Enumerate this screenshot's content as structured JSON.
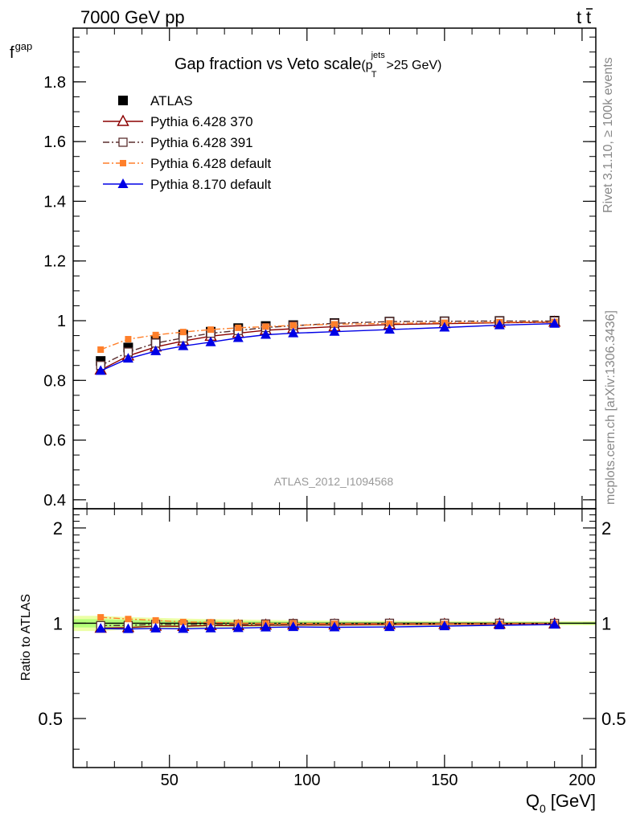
{
  "header": {
    "left": "7000 GeV pp",
    "right": "t",
    "right_bar": "t"
  },
  "side_text": {
    "rivet": "Rivet 3.1.10, ≥ 100k events",
    "mcplots": "mcplots.cern.ch [arXiv:1306.3436]"
  },
  "colors": {
    "atlas": "#000000",
    "p370": "#8b0000",
    "p391": "#5a2e2e",
    "p6def": "#ff7f2a",
    "p8def": "#0000e6",
    "band_outer": "#ecffa6",
    "band_inner": "#b5ff7a"
  },
  "chart_data": [
    {
      "type": "line",
      "title": "Gap fraction vs Veto scale",
      "title_suffix": {
        "open": "(p",
        "sub": "T",
        "sup": "jets",
        "close": ">25 GeV)"
      },
      "ylabel": "f",
      "ylabel_sub": "gap",
      "xlim": [
        15,
        205
      ],
      "ylim": [
        0.37,
        1.98
      ],
      "yticks": [
        "0.4",
        "0.6",
        "0.8",
        "1",
        "1.2",
        "1.4",
        "1.6",
        "1.8"
      ],
      "grid": false,
      "legend": "top-left",
      "watermark": "ATLAS_2012_I1094568",
      "x": [
        25,
        35,
        45,
        55,
        65,
        75,
        85,
        95,
        110,
        130,
        150,
        170,
        190
      ],
      "series": [
        {
          "name": "ATLAS",
          "key": "atlas",
          "style": "square-filled",
          "values": [
            0.865,
            0.91,
            0.932,
            0.953,
            0.963,
            0.975,
            0.982,
            0.985,
            0.992,
            0.997,
            0.998,
            0.999,
            1.0
          ]
        },
        {
          "name": "Pythia 6.428 370",
          "key": "p370",
          "style": "triangle-open-solid",
          "values": [
            0.835,
            0.882,
            0.912,
            0.932,
            0.948,
            0.958,
            0.968,
            0.973,
            0.98,
            0.987,
            0.99,
            0.993,
            0.995
          ]
        },
        {
          "name": "Pythia 6.428 391",
          "key": "p391",
          "style": "square-open-dashdot",
          "values": [
            0.85,
            0.895,
            0.925,
            0.942,
            0.958,
            0.967,
            0.977,
            0.983,
            0.991,
            0.997,
            0.998,
            0.999,
            0.999
          ]
        },
        {
          "name": "Pythia 6.428 default",
          "key": "p6def",
          "style": "square-small-dashdot",
          "values": [
            0.903,
            0.938,
            0.952,
            0.962,
            0.97,
            0.976,
            0.98,
            0.984,
            0.988,
            0.991,
            0.993,
            0.995,
            0.996
          ]
        },
        {
          "name": "Pythia 8.170 default",
          "key": "p8def",
          "style": "triangle-filled-solid",
          "values": [
            0.832,
            0.873,
            0.898,
            0.915,
            0.928,
            0.942,
            0.953,
            0.958,
            0.963,
            0.97,
            0.977,
            0.985,
            0.99
          ]
        }
      ]
    },
    {
      "type": "line",
      "ylabel": "Ratio to ATLAS",
      "xlabel": "Q",
      "xlabel_sub": "0",
      "xlabel_unit": "[GeV]",
      "xlim": [
        15,
        205
      ],
      "ylim": [
        0.35,
        2.3
      ],
      "log_y": true,
      "yticks": [
        "0.5",
        "1",
        "2"
      ],
      "xticks": [
        "50",
        "100",
        "150",
        "200"
      ],
      "grid": false,
      "reference": 1.0,
      "x": [
        25,
        35,
        45,
        55,
        65,
        75,
        85,
        95,
        110,
        130,
        150,
        170,
        190
      ],
      "band_outer": [
        0.055,
        0.045,
        0.04,
        0.035,
        0.03,
        0.028,
        0.025,
        0.022,
        0.02,
        0.018,
        0.016,
        0.015,
        0.015
      ],
      "band_inner": [
        0.03,
        0.025,
        0.022,
        0.02,
        0.018,
        0.016,
        0.014,
        0.012,
        0.011,
        0.01,
        0.009,
        0.008,
        0.008
      ],
      "series": [
        {
          "name": "Pythia 6.428 370",
          "key": "p370",
          "style": "triangle-open-solid",
          "values": [
            0.965,
            0.969,
            0.979,
            0.978,
            0.984,
            0.983,
            0.986,
            0.988,
            0.988,
            0.99,
            0.992,
            0.994,
            0.995
          ]
        },
        {
          "name": "Pythia 6.428 391",
          "key": "p391",
          "style": "square-open-dashdot",
          "values": [
            0.983,
            0.984,
            0.992,
            0.988,
            0.995,
            0.992,
            0.995,
            0.998,
            0.999,
            1.0,
            1.0,
            1.0,
            0.999
          ]
        },
        {
          "name": "Pythia 6.428 default",
          "key": "p6def",
          "style": "square-small-dashdot",
          "values": [
            1.044,
            1.031,
            1.021,
            1.009,
            1.007,
            1.001,
            0.998,
            0.999,
            0.996,
            0.994,
            0.995,
            0.996,
            0.996
          ]
        },
        {
          "name": "Pythia 8.170 default",
          "key": "p8def",
          "style": "triangle-filled-solid",
          "values": [
            0.962,
            0.959,
            0.963,
            0.96,
            0.964,
            0.966,
            0.97,
            0.973,
            0.971,
            0.973,
            0.979,
            0.986,
            0.99
          ]
        }
      ]
    }
  ]
}
